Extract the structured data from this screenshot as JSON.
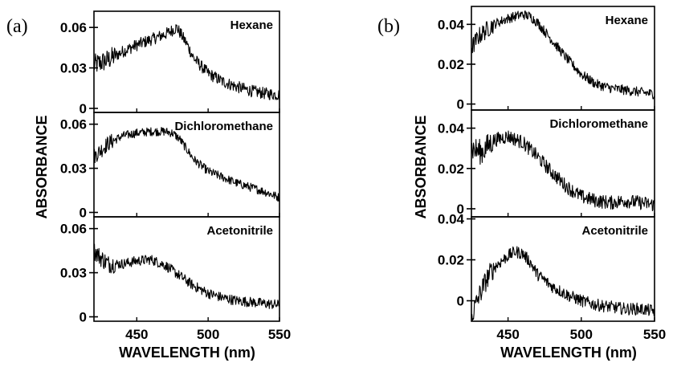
{
  "figure": {
    "panels": [
      "(a)",
      "(b)"
    ],
    "ylabel": "ABSORBANCE",
    "xlabel": "WAVELENGTH (nm)"
  },
  "chart_data": [
    {
      "panel": "(a)",
      "type": "line",
      "xlabel": "WAVELENGTH (nm)",
      "ylabel": "ABSORBANCE",
      "xlim": [
        420,
        550
      ],
      "xticks": [
        450,
        500,
        550
      ],
      "xtick_labels": [
        "450",
        "500",
        "550"
      ],
      "subplots": [
        {
          "label": "Hexane",
          "ylim": [
            -0.003,
            0.072
          ],
          "yticks": [
            0,
            0.03,
            0.06
          ],
          "ytick_labels": [
            "0",
            "0.03",
            "0.06"
          ],
          "x": [
            420,
            430,
            440,
            450,
            460,
            470,
            475,
            478,
            485,
            490,
            500,
            510,
            520,
            530,
            540,
            550
          ],
          "y": [
            0.032,
            0.036,
            0.042,
            0.047,
            0.051,
            0.055,
            0.058,
            0.06,
            0.048,
            0.037,
            0.026,
            0.02,
            0.016,
            0.013,
            0.011,
            0.01
          ],
          "noise": 0.0045
        },
        {
          "label": "Dichloromethane",
          "ylim": [
            -0.003,
            0.068
          ],
          "yticks": [
            0,
            0.03,
            0.06
          ],
          "ytick_labels": [
            "0",
            "0.03",
            "0.06"
          ],
          "x": [
            420,
            430,
            440,
            450,
            460,
            470,
            475,
            480,
            490,
            500,
            510,
            520,
            530,
            540,
            550
          ],
          "y": [
            0.038,
            0.047,
            0.052,
            0.054,
            0.055,
            0.055,
            0.054,
            0.05,
            0.036,
            0.028,
            0.024,
            0.02,
            0.017,
            0.014,
            0.01
          ],
          "noise": 0.003
        },
        {
          "label": "Acetonitrile",
          "ylim": [
            -0.003,
            0.068
          ],
          "yticks": [
            0,
            0.03,
            0.06
          ],
          "ytick_labels": [
            "0",
            "0.03",
            "0.06"
          ],
          "x": [
            420,
            425,
            430,
            440,
            450,
            460,
            470,
            480,
            490,
            500,
            510,
            520,
            530,
            540,
            550
          ],
          "y": [
            0.045,
            0.04,
            0.036,
            0.036,
            0.038,
            0.039,
            0.035,
            0.028,
            0.021,
            0.016,
            0.013,
            0.011,
            0.01,
            0.009,
            0.008
          ],
          "noise": 0.0035
        }
      ]
    },
    {
      "panel": "(b)",
      "type": "line",
      "xlabel": "WAVELENGTH (nm)",
      "ylabel": "ABSORBANCE",
      "xlim": [
        425,
        550
      ],
      "xticks": [
        450,
        500,
        550
      ],
      "xtick_labels": [
        "450",
        "500",
        "550"
      ],
      "subplots": [
        {
          "label": "Hexane",
          "ylim": [
            -0.003,
            0.049
          ],
          "yticks": [
            0,
            0.02,
            0.04
          ],
          "ytick_labels": [
            "0",
            "0.02",
            "0.04"
          ],
          "x": [
            425,
            430,
            440,
            450,
            460,
            465,
            470,
            480,
            490,
            500,
            510,
            520,
            530,
            540,
            550
          ],
          "y": [
            0.028,
            0.034,
            0.04,
            0.043,
            0.045,
            0.044,
            0.041,
            0.032,
            0.023,
            0.015,
            0.01,
            0.008,
            0.007,
            0.006,
            0.005
          ],
          "noise": 0.0025
        },
        {
          "label": "Dichloromethane",
          "ylim": [
            -0.004,
            0.049
          ],
          "yticks": [
            0,
            0.02,
            0.04
          ],
          "ytick_labels": [
            "0",
            "0.02",
            "0.04"
          ],
          "x": [
            425,
            432,
            440,
            450,
            460,
            470,
            480,
            490,
            500,
            510,
            520,
            530,
            540,
            550
          ],
          "y": [
            0.03,
            0.028,
            0.034,
            0.036,
            0.033,
            0.026,
            0.018,
            0.011,
            0.006,
            0.004,
            0.003,
            0.004,
            0.003,
            0.002
          ],
          "noise": 0.0035
        },
        {
          "label": "Acetonitrile",
          "ylim": [
            -0.01,
            0.041
          ],
          "yticks": [
            0,
            0.02,
            0.04
          ],
          "ytick_labels": [
            "0",
            "0.02",
            "0.04"
          ],
          "x": [
            425,
            430,
            435,
            440,
            450,
            455,
            460,
            465,
            470,
            480,
            490,
            500,
            510,
            520,
            530,
            540,
            550
          ],
          "y": [
            -0.008,
            0.002,
            0.01,
            0.016,
            0.022,
            0.024,
            0.023,
            0.019,
            0.013,
            0.007,
            0.003,
            0.0,
            -0.002,
            -0.003,
            -0.004,
            -0.004,
            -0.005
          ],
          "noise": 0.003
        }
      ]
    }
  ]
}
